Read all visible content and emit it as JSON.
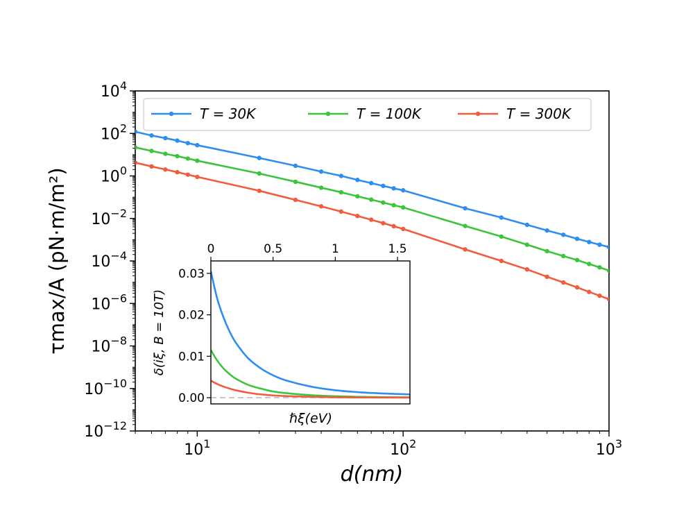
{
  "chart_data": [
    {
      "type": "line",
      "xscale": "log",
      "yscale": "log",
      "xlabel": "d(nm)",
      "ylabel": "τmax/A (pN·m/m²)",
      "xlim": [
        5,
        1000
      ],
      "ylim": [
        1e-12,
        10000.0
      ],
      "x_ticks": [
        {
          "value": 10,
          "base": "10",
          "exp": "1"
        },
        {
          "value": 100,
          "base": "10",
          "exp": "2"
        },
        {
          "value": 1000,
          "base": "10",
          "exp": "3"
        }
      ],
      "y_ticks": [
        {
          "value": 10000.0,
          "base": "10",
          "exp": "4"
        },
        {
          "value": 100.0,
          "base": "10",
          "exp": "2"
        },
        {
          "value": 1.0,
          "base": "10",
          "exp": "0"
        },
        {
          "value": 0.01,
          "base": "10",
          "exp": "−2"
        },
        {
          "value": 0.0001,
          "base": "10",
          "exp": "−4"
        },
        {
          "value": 1e-06,
          "base": "10",
          "exp": "−6"
        },
        {
          "value": 1e-08,
          "base": "10",
          "exp": "−8"
        },
        {
          "value": 1e-10,
          "base": "10",
          "exp": "−10"
        },
        {
          "value": 1e-12,
          "base": "10",
          "exp": "−12"
        }
      ],
      "legend_position": "top",
      "series": [
        {
          "name": "T = 30K",
          "color": "#2e8ef0",
          "x": [
            5,
            6,
            7,
            8,
            9,
            10,
            20,
            30,
            40,
            50,
            60,
            70,
            80,
            90,
            100,
            200,
            300,
            400,
            500,
            600,
            700,
            800,
            900,
            1000
          ],
          "y": [
            120,
            80,
            60,
            46,
            35,
            28,
            7,
            3,
            1.6,
            1.0,
            0.65,
            0.46,
            0.34,
            0.26,
            0.21,
            0.03,
            0.011,
            0.005,
            0.0027,
            0.0017,
            0.0011,
            0.00078,
            0.00058,
            0.00045
          ]
        },
        {
          "name": "T = 100K",
          "color": "#3cc43a",
          "x": [
            5,
            6,
            7,
            8,
            9,
            10,
            20,
            30,
            40,
            50,
            60,
            70,
            80,
            90,
            100,
            200,
            300,
            400,
            500,
            600,
            700,
            800,
            900,
            1000
          ],
          "y": [
            22,
            15,
            11,
            8.5,
            6.6,
            5.2,
            1.3,
            0.53,
            0.28,
            0.17,
            0.11,
            0.077,
            0.056,
            0.042,
            0.033,
            0.0044,
            0.0014,
            0.00058,
            0.00029,
            0.00017,
            0.00011,
            7.2e-05,
            5e-05,
            3.5e-05
          ]
        },
        {
          "name": "T = 300K",
          "color": "#f05c3c",
          "x": [
            5,
            6,
            7,
            8,
            9,
            10,
            20,
            30,
            40,
            50,
            60,
            70,
            80,
            90,
            100,
            200,
            300,
            400,
            500,
            600,
            700,
            800,
            900,
            1000
          ],
          "y": [
            4.2,
            2.8,
            2.0,
            1.5,
            1.15,
            0.9,
            0.2,
            0.075,
            0.037,
            0.021,
            0.013,
            0.0087,
            0.006,
            0.0043,
            0.0032,
            0.00035,
            0.0001,
            4e-05,
            1.8e-05,
            9.7e-06,
            5.7e-06,
            3.5e-06,
            2.3e-06,
            1.6e-06
          ]
        }
      ]
    },
    {
      "type": "line",
      "role": "inset",
      "xlabel": "ℏξ(eV)",
      "ylabel": "δ(iξ, B = 10T)",
      "xlim": [
        0,
        1.6
      ],
      "ylim": [
        -0.0015,
        0.033
      ],
      "x_ticks": [
        "0",
        "0.5",
        "1",
        "1.5"
      ],
      "x_tick_values": [
        0,
        0.5,
        1,
        1.5
      ],
      "y_ticks": [
        "0.00",
        "0.01",
        "0.02",
        "0.03"
      ],
      "y_tick_values": [
        0,
        0.01,
        0.02,
        0.03
      ],
      "reference_line": {
        "y": 0,
        "style": "dashed",
        "color": "#c8c8c8"
      },
      "series": [
        {
          "name": "T = 30K",
          "color": "#2e8ef0",
          "x": [
            0,
            0.05,
            0.1,
            0.15,
            0.2,
            0.3,
            0.4,
            0.5,
            0.6,
            0.8,
            1.0,
            1.2,
            1.4,
            1.6
          ],
          "y": [
            0.0305,
            0.024,
            0.0195,
            0.016,
            0.0133,
            0.0095,
            0.0071,
            0.0054,
            0.0042,
            0.0027,
            0.0018,
            0.0013,
            0.001,
            0.0008
          ]
        },
        {
          "name": "T = 100K",
          "color": "#3cc43a",
          "x": [
            0,
            0.05,
            0.1,
            0.15,
            0.2,
            0.3,
            0.4,
            0.5,
            0.6,
            0.8,
            1.0,
            1.2,
            1.4,
            1.6
          ],
          "y": [
            0.0115,
            0.009,
            0.0071,
            0.0057,
            0.0046,
            0.0031,
            0.0022,
            0.0015,
            0.0011,
            0.0006,
            0.00035,
            0.0002,
            0.00012,
            0.0001
          ]
        },
        {
          "name": "T = 300K",
          "color": "#f05c3c",
          "x": [
            0,
            0.05,
            0.1,
            0.15,
            0.2,
            0.3,
            0.4,
            0.5,
            0.6,
            0.8,
            1.0,
            1.2,
            1.4,
            1.6
          ],
          "y": [
            0.0041,
            0.0033,
            0.0027,
            0.0022,
            0.0018,
            0.0012,
            0.0008,
            0.00055,
            0.0004,
            0.0002,
            0.0001,
            5e-05,
            3e-05,
            2e-05
          ]
        }
      ]
    }
  ]
}
